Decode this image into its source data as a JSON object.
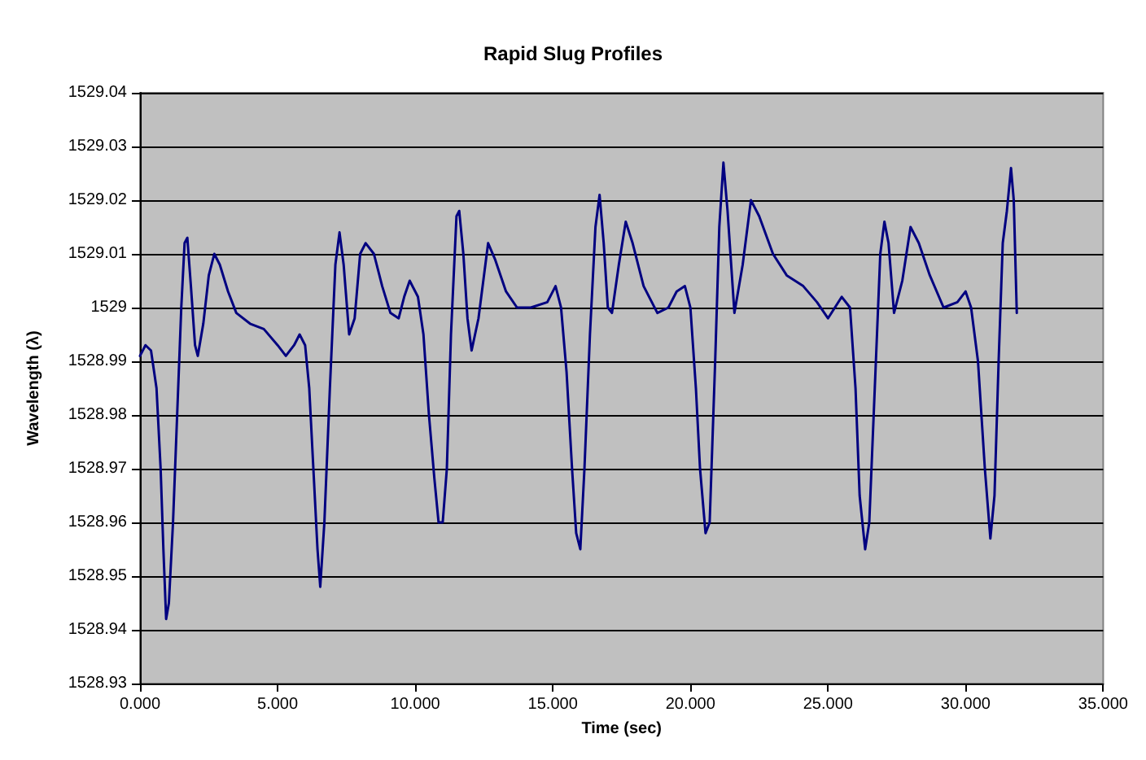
{
  "chart_data": {
    "type": "line",
    "title": "Rapid Slug Profiles",
    "xlabel": "Time (sec)",
    "ylabel": "Wavelength (λ)",
    "xlim": [
      0,
      35
    ],
    "xticks": [
      {
        "value": 0,
        "label": "0.000"
      },
      {
        "value": 5,
        "label": "5.000"
      },
      {
        "value": 10,
        "label": "10.000"
      },
      {
        "value": 15,
        "label": "15.000"
      },
      {
        "value": 20,
        "label": "20.000"
      },
      {
        "value": 25,
        "label": "25.000"
      },
      {
        "value": 30,
        "label": "30.000"
      },
      {
        "value": 35,
        "label": "35.000"
      }
    ],
    "ylim": [
      1528.93,
      1529.04
    ],
    "yticks": [
      1528.93,
      1528.94,
      1528.95,
      1528.96,
      1528.97,
      1528.98,
      1528.99,
      1529,
      1529.01,
      1529.02,
      1529.03,
      1529.04
    ],
    "grid": "y",
    "marker": "none",
    "line_style": "solid",
    "series": [
      {
        "color": "#000080",
        "x": [
          0,
          0.2,
          0.4,
          0.6,
          0.75,
          0.85,
          0.95,
          1.05,
          1.2,
          1.35,
          1.5,
          1.62,
          1.72,
          1.85,
          2.0,
          2.1,
          2.3,
          2.5,
          2.7,
          2.9,
          3.2,
          3.5,
          4.0,
          4.5,
          5.0,
          5.3,
          5.6,
          5.8,
          6.0,
          6.15,
          6.3,
          6.45,
          6.55,
          6.7,
          6.9,
          7.1,
          7.25,
          7.4,
          7.6,
          7.8,
          8.0,
          8.2,
          8.5,
          8.8,
          9.1,
          9.4,
          9.6,
          9.8,
          10.1,
          10.3,
          10.5,
          10.7,
          10.85,
          11.0,
          11.15,
          11.3,
          11.5,
          11.6,
          11.75,
          11.9,
          12.05,
          12.3,
          12.65,
          12.9,
          13.3,
          13.7,
          14.2,
          14.8,
          15.1,
          15.3,
          15.5,
          15.7,
          15.85,
          16.0,
          16.15,
          16.35,
          16.55,
          16.7,
          16.85,
          17.0,
          17.15,
          17.4,
          17.65,
          17.9,
          18.3,
          18.8,
          19.2,
          19.5,
          19.8,
          20.0,
          20.2,
          20.35,
          20.55,
          20.7,
          20.9,
          21.05,
          21.2,
          21.35,
          21.6,
          21.9,
          22.2,
          22.5,
          23.0,
          23.5,
          24.1,
          24.6,
          25.0,
          25.5,
          25.8,
          26.0,
          26.15,
          26.35,
          26.5,
          26.7,
          26.9,
          27.05,
          27.2,
          27.4,
          27.7,
          28.0,
          28.3,
          28.7,
          29.2,
          29.7,
          30.0,
          30.2,
          30.45,
          30.7,
          30.9,
          31.05,
          31.2,
          31.35,
          31.5,
          31.65,
          31.75,
          31.86
        ],
        "values": [
          1528.991,
          1528.993,
          1528.992,
          1528.985,
          1528.97,
          1528.955,
          1528.942,
          1528.945,
          1528.96,
          1528.98,
          1529.0,
          1529.012,
          1529.013,
          1529.004,
          1528.993,
          1528.991,
          1528.997,
          1529.006,
          1529.01,
          1529.008,
          1529.003,
          1528.999,
          1528.997,
          1528.996,
          1528.993,
          1528.991,
          1528.993,
          1528.995,
          1528.993,
          1528.985,
          1528.97,
          1528.955,
          1528.948,
          1528.96,
          1528.985,
          1529.008,
          1529.014,
          1529.008,
          1528.995,
          1528.998,
          1529.01,
          1529.012,
          1529.01,
          1529.004,
          1528.999,
          1528.998,
          1529.002,
          1529.005,
          1529.002,
          1528.995,
          1528.98,
          1528.968,
          1528.96,
          1528.96,
          1528.97,
          1528.995,
          1529.017,
          1529.018,
          1529.01,
          1528.998,
          1528.992,
          1528.998,
          1529.012,
          1529.009,
          1529.003,
          1529.0,
          1529.0,
          1529.001,
          1529.004,
          1529.0,
          1528.988,
          1528.97,
          1528.958,
          1528.955,
          1528.97,
          1528.995,
          1529.015,
          1529.021,
          1529.012,
          1529.0,
          1528.999,
          1529.008,
          1529.016,
          1529.012,
          1529.004,
          1528.999,
          1529.0,
          1529.003,
          1529.004,
          1529.0,
          1528.985,
          1528.97,
          1528.958,
          1528.96,
          1528.99,
          1529.015,
          1529.027,
          1529.018,
          1528.999,
          1529.008,
          1529.02,
          1529.017,
          1529.01,
          1529.006,
          1529.004,
          1529.001,
          1528.998,
          1529.002,
          1529.0,
          1528.985,
          1528.965,
          1528.955,
          1528.96,
          1528.985,
          1529.01,
          1529.016,
          1529.012,
          1528.999,
          1529.005,
          1529.015,
          1529.012,
          1529.006,
          1529.0,
          1529.001,
          1529.003,
          1529.0,
          1528.99,
          1528.97,
          1528.957,
          1528.965,
          1528.99,
          1529.012,
          1529.018,
          1529.026,
          1529.02,
          1528.999
        ]
      }
    ]
  }
}
